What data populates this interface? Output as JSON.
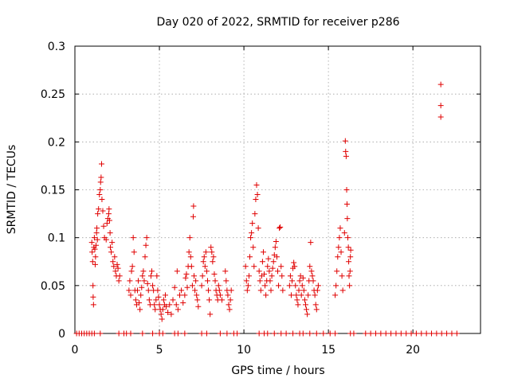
{
  "chart_data": {
    "type": "scatter",
    "title": "Day 020 of 2022, SRMTID for receiver p286",
    "xlabel": "GPS time / hours",
    "ylabel": "SRMTID / TECUs",
    "xlim": [
      0,
      24
    ],
    "ylim": [
      0,
      0.3
    ],
    "x_ticks": [
      0,
      5,
      10,
      15,
      20
    ],
    "x_tick_labels": [
      "0",
      "5",
      "10",
      "15",
      "20"
    ],
    "y_ticks": [
      0,
      0.05,
      0.1,
      0.15,
      0.2,
      0.25,
      0.3
    ],
    "y_tick_labels": [
      "0",
      "0.05",
      "0.1",
      "0.15",
      "0.2",
      "0.25",
      "0.3"
    ],
    "grid": true,
    "marker": "+",
    "marker_color": "#e00000",
    "series": [
      {
        "name": "SRMTID",
        "points": [
          [
            0.1,
            0
          ],
          [
            0.25,
            0
          ],
          [
            0.4,
            0
          ],
          [
            0.55,
            0
          ],
          [
            0.7,
            0
          ],
          [
            0.85,
            0
          ],
          [
            1.0,
            0
          ],
          [
            1.15,
            0
          ],
          [
            1.5,
            0
          ],
          [
            2.6,
            0
          ],
          [
            2.9,
            0
          ],
          [
            3.05,
            0
          ],
          [
            3.3,
            0
          ],
          [
            4.0,
            0
          ],
          [
            4.6,
            0
          ],
          [
            5.0,
            0
          ],
          [
            5.2,
            0
          ],
          [
            5.9,
            0
          ],
          [
            6.1,
            0
          ],
          [
            6.5,
            0
          ],
          [
            7.5,
            0
          ],
          [
            7.8,
            0
          ],
          [
            8.6,
            0
          ],
          [
            9.0,
            0
          ],
          [
            9.4,
            0
          ],
          [
            9.6,
            0
          ],
          [
            10.9,
            0
          ],
          [
            11.2,
            0
          ],
          [
            11.4,
            0
          ],
          [
            11.8,
            0
          ],
          [
            12.2,
            0
          ],
          [
            12.5,
            0
          ],
          [
            12.9,
            0
          ],
          [
            13.3,
            0
          ],
          [
            13.5,
            0
          ],
          [
            13.9,
            0
          ],
          [
            14.3,
            0
          ],
          [
            14.7,
            0
          ],
          [
            15.1,
            0
          ],
          [
            15.4,
            0
          ],
          [
            16.3,
            0
          ],
          [
            16.5,
            0
          ],
          [
            17.2,
            0
          ],
          [
            17.5,
            0
          ],
          [
            17.8,
            0
          ],
          [
            18.1,
            0
          ],
          [
            18.4,
            0
          ],
          [
            18.7,
            0
          ],
          [
            19.0,
            0
          ],
          [
            19.3,
            0
          ],
          [
            19.6,
            0
          ],
          [
            19.9,
            0
          ],
          [
            20.2,
            0
          ],
          [
            20.5,
            0
          ],
          [
            20.8,
            0
          ],
          [
            21.1,
            0
          ],
          [
            21.4,
            0
          ],
          [
            21.7,
            0
          ],
          [
            22.0,
            0
          ],
          [
            22.3,
            0
          ],
          [
            22.6,
            0
          ],
          [
            1.0,
            0.095
          ],
          [
            1.02,
            0.085
          ],
          [
            1.05,
            0.075
          ],
          [
            1.07,
            0.05
          ],
          [
            1.08,
            0.038
          ],
          [
            1.1,
            0.03
          ],
          [
            1.12,
            0.09
          ],
          [
            1.15,
            0.1
          ],
          [
            1.18,
            0.088
          ],
          [
            1.2,
            0.072
          ],
          [
            1.22,
            0.08
          ],
          [
            1.25,
            0.092
          ],
          [
            1.28,
            0.105
          ],
          [
            1.3,
            0.11
          ],
          [
            1.33,
            0.098
          ],
          [
            1.35,
            0.125
          ],
          [
            1.4,
            0.13
          ],
          [
            1.45,
            0.145
          ],
          [
            1.5,
            0.15
          ],
          [
            1.52,
            0.158
          ],
          [
            1.55,
            0.163
          ],
          [
            1.58,
            0.177
          ],
          [
            1.6,
            0.14
          ],
          [
            1.65,
            0.128
          ],
          [
            1.7,
            0.112
          ],
          [
            1.75,
            0.1
          ],
          [
            1.85,
            0.098
          ],
          [
            1.9,
            0.115
          ],
          [
            1.95,
            0.12
          ],
          [
            2.0,
            0.125
          ],
          [
            2.02,
            0.13
          ],
          [
            2.05,
            0.118
          ],
          [
            2.08,
            0.105
          ],
          [
            2.1,
            0.09
          ],
          [
            2.15,
            0.085
          ],
          [
            2.2,
            0.095
          ],
          [
            2.25,
            0.075
          ],
          [
            2.3,
            0.07
          ],
          [
            2.35,
            0.08
          ],
          [
            2.4,
            0.065
          ],
          [
            2.45,
            0.06
          ],
          [
            2.5,
            0.072
          ],
          [
            2.55,
            0.068
          ],
          [
            2.6,
            0.055
          ],
          [
            2.65,
            0.06
          ],
          [
            3.2,
            0.045
          ],
          [
            3.25,
            0.055
          ],
          [
            3.3,
            0.04
          ],
          [
            3.35,
            0.065
          ],
          [
            3.4,
            0.07
          ],
          [
            3.45,
            0.1
          ],
          [
            3.5,
            0.085
          ],
          [
            3.55,
            0.045
          ],
          [
            3.6,
            0.035
          ],
          [
            3.65,
            0.03
          ],
          [
            3.7,
            0.045
          ],
          [
            3.75,
            0.055
          ],
          [
            3.8,
            0.032
          ],
          [
            3.85,
            0.025
          ],
          [
            3.9,
            0.04
          ],
          [
            3.95,
            0.048
          ],
          [
            4.0,
            0.06
          ],
          [
            4.05,
            0.065
          ],
          [
            4.1,
            0.055
          ],
          [
            4.15,
            0.08
          ],
          [
            4.2,
            0.092
          ],
          [
            4.25,
            0.1
          ],
          [
            4.3,
            0.052
          ],
          [
            4.35,
            0.045
          ],
          [
            4.4,
            0.035
          ],
          [
            4.45,
            0.03
          ],
          [
            4.5,
            0.06
          ],
          [
            4.55,
            0.065
          ],
          [
            4.6,
            0.05
          ],
          [
            4.65,
            0.045
          ],
          [
            4.7,
            0.03
          ],
          [
            4.75,
            0.025
          ],
          [
            4.8,
            0.035
          ],
          [
            4.85,
            0.06
          ],
          [
            4.9,
            0.045
          ],
          [
            4.95,
            0.038
          ],
          [
            5.0,
            0.03
          ],
          [
            5.05,
            0.025
          ],
          [
            5.1,
            0.02
          ],
          [
            5.15,
            0.015
          ],
          [
            5.2,
            0.025
          ],
          [
            5.25,
            0.035
          ],
          [
            5.3,
            0.03
          ],
          [
            5.35,
            0.04
          ],
          [
            5.4,
            0.028
          ],
          [
            5.5,
            0.022
          ],
          [
            5.6,
            0.03
          ],
          [
            5.7,
            0.02
          ],
          [
            5.8,
            0.035
          ],
          [
            5.9,
            0.048
          ],
          [
            6.0,
            0.03
          ],
          [
            6.05,
            0.065
          ],
          [
            6.1,
            0.025
          ],
          [
            6.2,
            0.04
          ],
          [
            6.3,
            0.045
          ],
          [
            6.4,
            0.032
          ],
          [
            6.5,
            0.04
          ],
          [
            6.55,
            0.058
          ],
          [
            6.6,
            0.062
          ],
          [
            6.65,
            0.048
          ],
          [
            6.7,
            0.07
          ],
          [
            6.75,
            0.085
          ],
          [
            6.8,
            0.1
          ],
          [
            6.85,
            0.08
          ],
          [
            6.9,
            0.07
          ],
          [
            6.95,
            0.05
          ],
          [
            7.0,
            0.122
          ],
          [
            7.02,
            0.133
          ],
          [
            7.05,
            0.06
          ],
          [
            7.1,
            0.045
          ],
          [
            7.15,
            0.055
          ],
          [
            7.2,
            0.04
          ],
          [
            7.25,
            0.035
          ],
          [
            7.3,
            0.028
          ],
          [
            7.5,
            0.05
          ],
          [
            7.55,
            0.06
          ],
          [
            7.6,
            0.075
          ],
          [
            7.65,
            0.08
          ],
          [
            7.7,
            0.07
          ],
          [
            7.75,
            0.085
          ],
          [
            7.8,
            0.065
          ],
          [
            7.85,
            0.055
          ],
          [
            7.9,
            0.045
          ],
          [
            7.95,
            0.035
          ],
          [
            8.0,
            0.02
          ],
          [
            8.05,
            0.09
          ],
          [
            8.1,
            0.085
          ],
          [
            8.15,
            0.075
          ],
          [
            8.2,
            0.08
          ],
          [
            8.25,
            0.062
          ],
          [
            8.3,
            0.055
          ],
          [
            8.35,
            0.045
          ],
          [
            8.4,
            0.04
          ],
          [
            8.45,
            0.035
          ],
          [
            8.5,
            0.05
          ],
          [
            8.55,
            0.045
          ],
          [
            8.6,
            0.04
          ],
          [
            8.7,
            0.035
          ],
          [
            8.9,
            0.065
          ],
          [
            8.95,
            0.055
          ],
          [
            9.0,
            0.045
          ],
          [
            9.05,
            0.04
          ],
          [
            9.1,
            0.03
          ],
          [
            9.15,
            0.025
          ],
          [
            9.2,
            0.035
          ],
          [
            9.25,
            0.045
          ],
          [
            10.1,
            0.07
          ],
          [
            10.15,
            0.055
          ],
          [
            10.2,
            0.045
          ],
          [
            10.25,
            0.05
          ],
          [
            10.3,
            0.06
          ],
          [
            10.35,
            0.08
          ],
          [
            10.4,
            0.1
          ],
          [
            10.45,
            0.105
          ],
          [
            10.5,
            0.115
          ],
          [
            10.55,
            0.09
          ],
          [
            10.6,
            0.07
          ],
          [
            10.65,
            0.125
          ],
          [
            10.7,
            0.14
          ],
          [
            10.75,
            0.155
          ],
          [
            10.8,
            0.145
          ],
          [
            10.85,
            0.11
          ],
          [
            10.9,
            0.065
          ],
          [
            10.95,
            0.055
          ],
          [
            11.0,
            0.045
          ],
          [
            11.05,
            0.06
          ],
          [
            11.1,
            0.075
          ],
          [
            11.15,
            0.085
          ],
          [
            11.2,
            0.062
          ],
          [
            11.25,
            0.05
          ],
          [
            11.3,
            0.04
          ],
          [
            11.35,
            0.055
          ],
          [
            11.4,
            0.07
          ],
          [
            11.45,
            0.078
          ],
          [
            11.5,
            0.065
          ],
          [
            11.55,
            0.055
          ],
          [
            11.6,
            0.045
          ],
          [
            11.65,
            0.06
          ],
          [
            11.7,
            0.068
          ],
          [
            11.75,
            0.075
          ],
          [
            11.8,
            0.082
          ],
          [
            11.85,
            0.09
          ],
          [
            11.9,
            0.096
          ],
          [
            11.95,
            0.08
          ],
          [
            12.0,
            0.065
          ],
          [
            12.05,
            0.05
          ],
          [
            12.1,
            0.11
          ],
          [
            12.15,
            0.111
          ],
          [
            12.2,
            0.07
          ],
          [
            12.25,
            0.06
          ],
          [
            12.3,
            0.045
          ],
          [
            12.7,
            0.05
          ],
          [
            12.75,
            0.06
          ],
          [
            12.8,
            0.04
          ],
          [
            12.85,
            0.055
          ],
          [
            12.9,
            0.068
          ],
          [
            12.95,
            0.074
          ],
          [
            13.0,
            0.07
          ],
          [
            13.05,
            0.05
          ],
          [
            13.1,
            0.04
          ],
          [
            13.15,
            0.035
          ],
          [
            13.2,
            0.03
          ],
          [
            13.25,
            0.045
          ],
          [
            13.3,
            0.055
          ],
          [
            13.35,
            0.06
          ],
          [
            13.4,
            0.04
          ],
          [
            13.45,
            0.05
          ],
          [
            13.5,
            0.058
          ],
          [
            13.55,
            0.045
          ],
          [
            13.6,
            0.035
          ],
          [
            13.65,
            0.03
          ],
          [
            13.7,
            0.025
          ],
          [
            13.75,
            0.02
          ],
          [
            13.8,
            0.04
          ],
          [
            13.85,
            0.055
          ],
          [
            13.9,
            0.07
          ],
          [
            13.95,
            0.095
          ],
          [
            14.0,
            0.065
          ],
          [
            14.05,
            0.06
          ],
          [
            14.1,
            0.055
          ],
          [
            14.15,
            0.045
          ],
          [
            14.2,
            0.04
          ],
          [
            14.25,
            0.03
          ],
          [
            14.3,
            0.025
          ],
          [
            14.35,
            0.045
          ],
          [
            14.4,
            0.05
          ],
          [
            15.4,
            0.04
          ],
          [
            15.45,
            0.05
          ],
          [
            15.5,
            0.065
          ],
          [
            15.55,
            0.08
          ],
          [
            15.6,
            0.09
          ],
          [
            15.65,
            0.1
          ],
          [
            15.7,
            0.11
          ],
          [
            15.75,
            0.085
          ],
          [
            15.8,
            0.06
          ],
          [
            15.85,
            0.045
          ],
          [
            15.95,
            0.105
          ],
          [
            16.0,
            0.201
          ],
          [
            16.02,
            0.19
          ],
          [
            16.05,
            0.185
          ],
          [
            16.08,
            0.15
          ],
          [
            16.1,
            0.135
          ],
          [
            16.12,
            0.12
          ],
          [
            16.15,
            0.1
          ],
          [
            16.18,
            0.09
          ],
          [
            16.2,
            0.075
          ],
          [
            16.22,
            0.06
          ],
          [
            16.25,
            0.05
          ],
          [
            16.28,
            0.065
          ],
          [
            16.3,
            0.08
          ],
          [
            16.32,
            0.087
          ],
          [
            21.65,
            0.26
          ],
          [
            21.65,
            0.238
          ],
          [
            21.65,
            0.226
          ]
        ]
      }
    ]
  }
}
